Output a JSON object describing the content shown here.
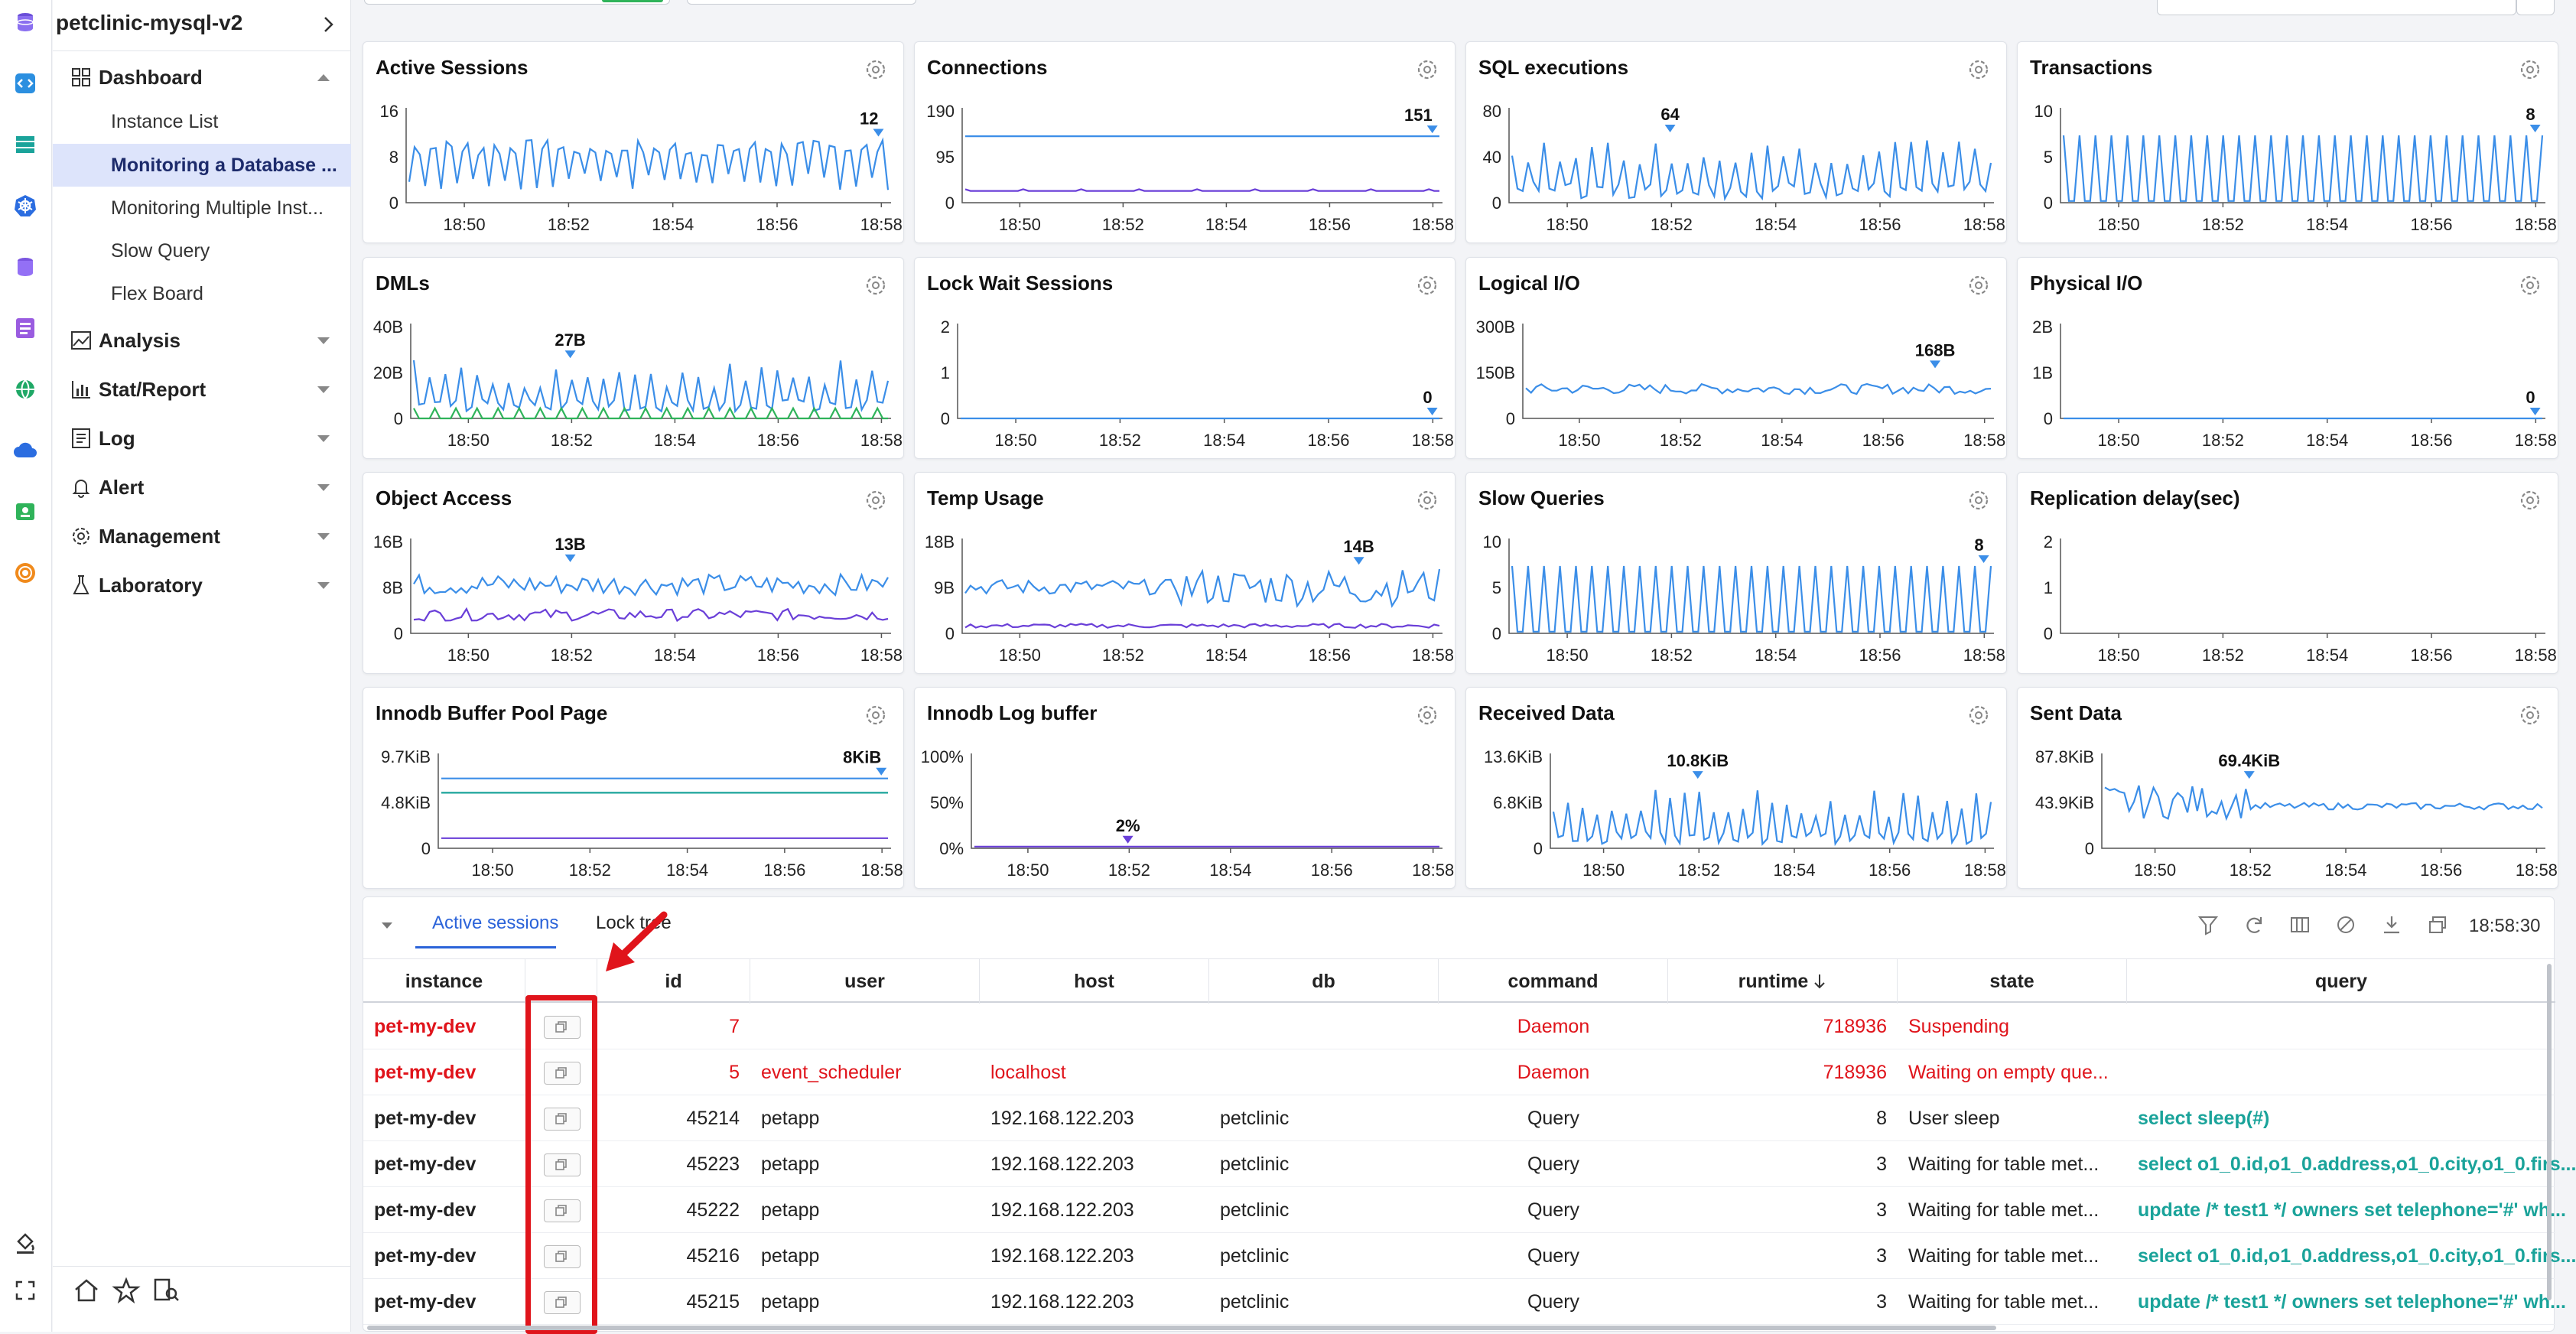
{
  "app": {
    "title": "petclinic-mysql-v2",
    "accent": "#2b63d9",
    "alert_color": "#e0141b",
    "query_color": "#1aa39a"
  },
  "sidebar": {
    "dashboard": {
      "label": "Dashboard",
      "items": [
        "Instance List",
        "Monitoring a Database ...",
        "Monitoring Multiple Inst...",
        "Slow Query",
        "Flex Board"
      ],
      "active_index": 1
    },
    "sections": [
      {
        "label": "Analysis",
        "icon": "chart-area-icon"
      },
      {
        "label": "Stat/Report",
        "icon": "bar-chart-icon"
      },
      {
        "label": "Log",
        "icon": "log-icon"
      },
      {
        "label": "Alert",
        "icon": "bell-icon"
      },
      {
        "label": "Management",
        "icon": "gear-icon"
      },
      {
        "label": "Laboratory",
        "icon": "flask-icon"
      }
    ]
  },
  "charts": [
    {
      "title": "Active Sessions",
      "y_ticks": [
        "16",
        "8",
        "0"
      ],
      "peak": "12",
      "x_ticks": [
        "18:50",
        "18:52",
        "18:54",
        "18:56",
        "18:58"
      ]
    },
    {
      "title": "Connections",
      "y_ticks": [
        "190",
        "95",
        "0"
      ],
      "peak": "151",
      "x_ticks": [
        "18:50",
        "18:52",
        "18:54",
        "18:56",
        "18:58"
      ]
    },
    {
      "title": "SQL executions",
      "y_ticks": [
        "80",
        "40",
        "0"
      ],
      "peak": "64",
      "x_ticks": [
        "18:50",
        "18:52",
        "18:54",
        "18:56",
        "18:58"
      ]
    },
    {
      "title": "Transactions",
      "y_ticks": [
        "10",
        "5",
        "0"
      ],
      "peak": "8",
      "x_ticks": [
        "18:50",
        "18:52",
        "18:54",
        "18:56",
        "18:58"
      ]
    },
    {
      "title": "DMLs",
      "y_ticks": [
        "40B",
        "20B",
        "0"
      ],
      "peak": "27B",
      "x_ticks": [
        "18:50",
        "18:52",
        "18:54",
        "18:56",
        "18:58"
      ]
    },
    {
      "title": "Lock Wait Sessions",
      "y_ticks": [
        "2",
        "1",
        "0"
      ],
      "peak": "0",
      "x_ticks": [
        "18:50",
        "18:52",
        "18:54",
        "18:56",
        "18:58"
      ]
    },
    {
      "title": "Logical I/O",
      "y_ticks": [
        "300B",
        "150B",
        "0"
      ],
      "peak": "168B",
      "x_ticks": [
        "18:50",
        "18:52",
        "18:54",
        "18:56",
        "18:58"
      ]
    },
    {
      "title": "Physical I/O",
      "y_ticks": [
        "2B",
        "1B",
        "0"
      ],
      "peak": "0",
      "x_ticks": [
        "18:50",
        "18:52",
        "18:54",
        "18:56",
        "18:58"
      ]
    },
    {
      "title": "Object Access",
      "y_ticks": [
        "16B",
        "8B",
        "0"
      ],
      "peak": "13B",
      "x_ticks": [
        "18:50",
        "18:52",
        "18:54",
        "18:56",
        "18:58"
      ]
    },
    {
      "title": "Temp Usage",
      "y_ticks": [
        "18B",
        "9B",
        "0"
      ],
      "peak": "14B",
      "x_ticks": [
        "18:50",
        "18:52",
        "18:54",
        "18:56",
        "18:58"
      ]
    },
    {
      "title": "Slow Queries",
      "y_ticks": [
        "10",
        "5",
        "0"
      ],
      "peak": "8",
      "x_ticks": [
        "18:50",
        "18:52",
        "18:54",
        "18:56",
        "18:58"
      ]
    },
    {
      "title": "Replication delay(sec)",
      "y_ticks": [
        "2",
        "1",
        "0"
      ],
      "peak": "",
      "x_ticks": [
        "18:50",
        "18:52",
        "18:54",
        "18:56",
        "18:58"
      ]
    },
    {
      "title": "Innodb Buffer Pool Page",
      "y_ticks": [
        "9.7KiB",
        "4.8KiB",
        "0"
      ],
      "peak": "8KiB",
      "x_ticks": [
        "18:50",
        "18:52",
        "18:54",
        "18:56",
        "18:58"
      ]
    },
    {
      "title": "Innodb Log buffer",
      "y_ticks": [
        "100%",
        "50%",
        "0%"
      ],
      "peak": "2%",
      "x_ticks": [
        "18:50",
        "18:52",
        "18:54",
        "18:56",
        "18:58"
      ]
    },
    {
      "title": "Received Data",
      "y_ticks": [
        "13.6KiB",
        "6.8KiB",
        "0"
      ],
      "peak": "10.8KiB",
      "x_ticks": [
        "18:50",
        "18:52",
        "18:54",
        "18:56",
        "18:58"
      ]
    },
    {
      "title": "Sent Data",
      "y_ticks": [
        "87.8KiB",
        "43.9KiB",
        "0"
      ],
      "peak": "69.4KiB",
      "x_ticks": [
        "18:50",
        "18:52",
        "18:54",
        "18:56",
        "18:58"
      ]
    }
  ],
  "sessions": {
    "tabs": [
      "Active sessions",
      "Lock tree"
    ],
    "time": "18:58:30",
    "columns": [
      "instance",
      "",
      "id",
      "user",
      "host",
      "db",
      "command",
      "runtime",
      "state",
      "query"
    ],
    "rows": [
      {
        "instance": "pet-my-dev",
        "id": "7",
        "user": "",
        "host": "",
        "db": "",
        "command": "Daemon",
        "runtime": "718936",
        "state": "Suspending",
        "query": "",
        "alert": true
      },
      {
        "instance": "pet-my-dev",
        "id": "5",
        "user": "event_scheduler",
        "host": "localhost",
        "db": "",
        "command": "Daemon",
        "runtime": "718936",
        "state": "Waiting on empty que...",
        "query": "",
        "alert": true
      },
      {
        "instance": "pet-my-dev",
        "id": "45214",
        "user": "petapp",
        "host": "192.168.122.203",
        "db": "petclinic",
        "command": "Query",
        "runtime": "8",
        "state": "User sleep",
        "query": "select sleep(#)",
        "alert": false
      },
      {
        "instance": "pet-my-dev",
        "id": "45223",
        "user": "petapp",
        "host": "192.168.122.203",
        "db": "petclinic",
        "command": "Query",
        "runtime": "3",
        "state": "Waiting for table met...",
        "query": "select o1_0.id,o1_0.address,o1_0.city,o1_0.firs...",
        "alert": false
      },
      {
        "instance": "pet-my-dev",
        "id": "45222",
        "user": "petapp",
        "host": "192.168.122.203",
        "db": "petclinic",
        "command": "Query",
        "runtime": "3",
        "state": "Waiting for table met...",
        "query": "update /* test1 */ owners set telephone='#' wh...",
        "alert": false
      },
      {
        "instance": "pet-my-dev",
        "id": "45216",
        "user": "petapp",
        "host": "192.168.122.203",
        "db": "petclinic",
        "command": "Query",
        "runtime": "3",
        "state": "Waiting for table met...",
        "query": "select o1_0.id,o1_0.address,o1_0.city,o1_0.firs...",
        "alert": false
      },
      {
        "instance": "pet-my-dev",
        "id": "45215",
        "user": "petapp",
        "host": "192.168.122.203",
        "db": "petclinic",
        "command": "Query",
        "runtime": "3",
        "state": "Waiting for table met...",
        "query": "update /* test1 */ owners set telephone='#' wh...",
        "alert": false
      }
    ]
  }
}
